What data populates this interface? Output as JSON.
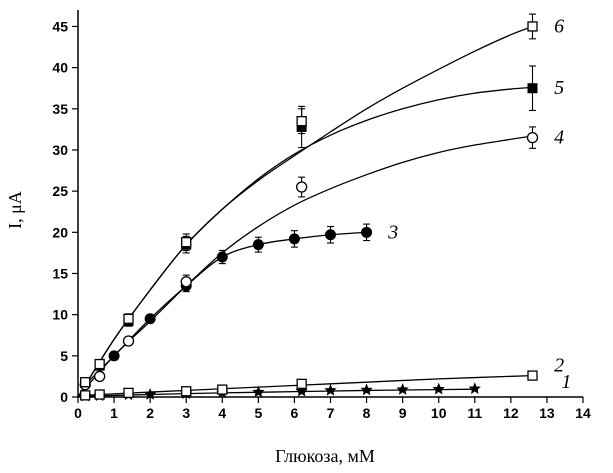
{
  "chart_data": {
    "type": "scatter",
    "xlabel": "Глюкоза, мМ",
    "ylabel": "I, μA",
    "xlim": [
      0,
      14
    ],
    "ylim": [
      0,
      47
    ],
    "x_ticks": [
      "0",
      "1",
      "2",
      "3",
      "4",
      "5",
      "6",
      "7",
      "8",
      "9",
      "10",
      "11",
      "12",
      "13",
      "14"
    ],
    "y_ticks": [
      "0",
      "5",
      "10",
      "15",
      "20",
      "25",
      "30",
      "35",
      "40",
      "45"
    ],
    "grid": false,
    "series": [
      {
        "name": "1",
        "marker": "star",
        "x": [
          0.2,
          0.6,
          1.4,
          2,
          3,
          4,
          5,
          6.2,
          7,
          8,
          9,
          10,
          11
        ],
        "y": [
          0.1,
          0.15,
          0.25,
          0.3,
          0.4,
          0.5,
          0.6,
          0.7,
          0.8,
          0.85,
          0.9,
          0.95,
          1.0
        ],
        "err": [
          0.1,
          0.1,
          0.1,
          0.1,
          0.15,
          0.15,
          0.15,
          0.15,
          0.15,
          0.15,
          0.15,
          0.15,
          0.15
        ],
        "fit": [
          [
            0.2,
            0.1
          ],
          [
            2,
            0.3
          ],
          [
            4,
            0.5
          ],
          [
            6,
            0.65
          ],
          [
            8,
            0.8
          ],
          [
            10,
            0.9
          ],
          [
            11,
            0.95
          ]
        ]
      },
      {
        "name": "2",
        "marker": "open-square",
        "x": [
          0.2,
          0.6,
          1.4,
          3,
          4,
          6.2,
          12.6
        ],
        "y": [
          0.2,
          0.3,
          0.5,
          0.7,
          0.9,
          1.6,
          2.6
        ],
        "err": [
          0.1,
          0.1,
          0.1,
          0.15,
          0.15,
          0.3,
          0.3
        ],
        "fit": [
          [
            0.2,
            0.2
          ],
          [
            2,
            0.6
          ],
          [
            4,
            1.0
          ],
          [
            6,
            1.4
          ],
          [
            8,
            1.8
          ],
          [
            10,
            2.2
          ],
          [
            12.6,
            2.6
          ]
        ]
      },
      {
        "name": "3",
        "marker": "filled-circle",
        "x": [
          0.2,
          0.6,
          1,
          1.4,
          2,
          3,
          4,
          5,
          6,
          7,
          8
        ],
        "y": [
          1.5,
          2.5,
          5.0,
          6.8,
          9.5,
          13.5,
          17.0,
          18.5,
          19.2,
          19.7,
          20.0
        ],
        "err": [
          0.3,
          0.3,
          0.4,
          0.5,
          0.5,
          0.7,
          0.8,
          0.9,
          1.0,
          1.0,
          1.0
        ],
        "fit": [
          [
            0.2,
            1.5
          ],
          [
            1,
            5.0
          ],
          [
            2,
            9.5
          ],
          [
            3,
            13.5
          ],
          [
            4,
            17.0
          ],
          [
            5,
            18.5
          ],
          [
            6,
            19.2
          ],
          [
            7,
            19.7
          ],
          [
            8,
            20.0
          ]
        ]
      },
      {
        "name": "4",
        "marker": "open-circle",
        "x": [
          0.2,
          0.6,
          1.4,
          3,
          6.2,
          12.6
        ],
        "y": [
          1.5,
          2.5,
          6.8,
          14.0,
          25.5,
          31.5
        ],
        "err": [
          0.3,
          0.3,
          0.5,
          0.8,
          1.2,
          1.3
        ],
        "fit": [
          [
            0,
            0
          ],
          [
            1,
            5.0
          ],
          [
            2,
            9.2
          ],
          [
            3,
            13.5
          ],
          [
            4,
            17.5
          ],
          [
            5,
            20.7
          ],
          [
            6,
            23.3
          ],
          [
            7,
            25.3
          ],
          [
            8,
            27.0
          ],
          [
            9,
            28.5
          ],
          [
            10,
            29.7
          ],
          [
            11,
            30.6
          ],
          [
            12,
            31.3
          ],
          [
            12.6,
            31.7
          ]
        ]
      },
      {
        "name": "5",
        "marker": "filled-square",
        "x": [
          0.2,
          0.6,
          1.4,
          3,
          6.2,
          12.6
        ],
        "y": [
          1.8,
          3.8,
          9.2,
          18.5,
          32.8,
          37.5
        ],
        "err": [
          0.3,
          0.4,
          0.6,
          1.0,
          2.5,
          2.7
        ],
        "fit": [
          [
            0,
            0
          ],
          [
            1,
            7.0
          ],
          [
            2,
            13.0
          ],
          [
            3,
            18.5
          ],
          [
            4,
            22.8
          ],
          [
            5,
            26.5
          ],
          [
            6,
            29.5
          ],
          [
            7,
            31.8
          ],
          [
            8,
            33.6
          ],
          [
            9,
            35.0
          ],
          [
            10,
            36.1
          ],
          [
            11,
            36.9
          ],
          [
            12,
            37.4
          ],
          [
            12.6,
            37.6
          ]
        ]
      },
      {
        "name": "6",
        "marker": "open-square",
        "x": [
          0.2,
          0.6,
          1.4,
          3,
          6.2,
          12.6
        ],
        "y": [
          1.8,
          4.0,
          9.5,
          18.8,
          33.5,
          45.0
        ],
        "err": [
          0.3,
          0.4,
          0.6,
          1.0,
          1.5,
          1.5
        ],
        "fit": [
          [
            0,
            0
          ],
          [
            1,
            7.0
          ],
          [
            2,
            13.0
          ],
          [
            3,
            18.5
          ],
          [
            4,
            22.8
          ],
          [
            5,
            26.3
          ],
          [
            6,
            29.3
          ],
          [
            7,
            32.2
          ],
          [
            8,
            35.0
          ],
          [
            9,
            37.5
          ],
          [
            10,
            39.8
          ],
          [
            11,
            42.0
          ],
          [
            12,
            44.0
          ],
          [
            12.6,
            45.0
          ]
        ]
      }
    ],
    "series_label_positions": [
      {
        "name": "1",
        "x": 13.4,
        "y": 1.8
      },
      {
        "name": "2",
        "x": 13.2,
        "y": 3.8
      },
      {
        "name": "3",
        "x": 8.6,
        "y": 20.0
      },
      {
        "name": "4",
        "x": 13.2,
        "y": 31.5
      },
      {
        "name": "5",
        "x": 13.2,
        "y": 37.5
      },
      {
        "name": "6",
        "x": 13.2,
        "y": 45.0
      }
    ]
  }
}
